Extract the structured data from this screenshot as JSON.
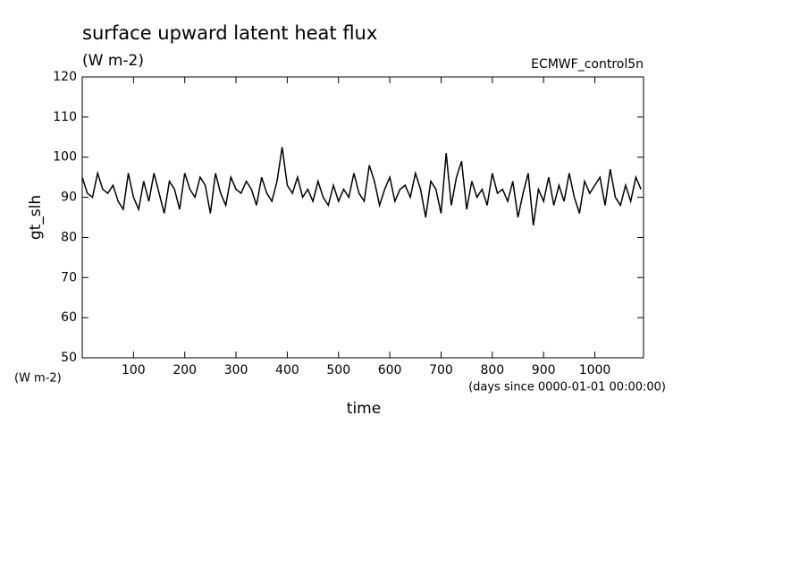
{
  "chart_data": {
    "type": "line",
    "title": "surface upward latent heat flux",
    "subtitle": "(W m-2)",
    "source_label": "ECMWF_control5n",
    "y_label": "gt_slh",
    "y_unit_label": "(W m-2)",
    "x_unit_label": "(days since 0000-01-01 00:00:00)",
    "x_label": "time",
    "xlim": [
      0,
      1095
    ],
    "xticks": [
      100,
      200,
      300,
      400,
      500,
      600,
      700,
      800,
      900,
      1000
    ],
    "ylim": [
      50,
      120
    ],
    "yticks": [
      50,
      60,
      70,
      80,
      90,
      100,
      110,
      120
    ],
    "x": [
      0,
      10,
      20,
      30,
      40,
      50,
      60,
      70,
      80,
      90,
      100,
      110,
      120,
      130,
      140,
      150,
      160,
      170,
      180,
      190,
      200,
      210,
      220,
      230,
      240,
      250,
      260,
      270,
      280,
      290,
      300,
      310,
      320,
      330,
      340,
      350,
      360,
      370,
      380,
      390,
      400,
      410,
      420,
      430,
      440,
      450,
      460,
      470,
      480,
      490,
      500,
      510,
      520,
      530,
      540,
      550,
      560,
      570,
      580,
      590,
      600,
      610,
      620,
      630,
      640,
      650,
      660,
      670,
      680,
      690,
      700,
      710,
      720,
      730,
      740,
      750,
      760,
      770,
      780,
      790,
      800,
      810,
      820,
      830,
      840,
      850,
      860,
      870,
      880,
      890,
      900,
      910,
      920,
      930,
      940,
      950,
      960,
      970,
      980,
      990,
      1000,
      1010,
      1020,
      1030,
      1040,
      1050,
      1060,
      1070,
      1080,
      1090
    ],
    "series": [
      {
        "color": "#000000",
        "values": [
          95,
          91,
          90,
          96,
          92,
          91,
          93,
          89,
          87,
          96,
          90,
          87,
          94,
          89,
          96,
          91,
          86,
          94,
          92,
          87,
          96,
          92,
          90,
          95,
          93,
          86,
          96,
          91,
          88,
          95,
          92,
          91,
          94,
          92,
          88,
          95,
          91,
          89,
          94,
          102.5,
          93,
          91,
          95,
          90,
          92,
          89,
          94,
          90,
          88,
          93,
          89,
          92,
          90,
          96,
          91,
          89,
          98,
          94,
          88,
          92,
          95,
          89,
          92,
          93,
          90,
          96,
          92,
          85,
          94,
          92,
          86,
          101,
          88,
          95,
          99,
          87,
          94,
          90,
          92,
          88,
          96,
          91,
          92,
          89,
          94,
          85,
          91,
          96,
          83,
          92,
          89,
          95,
          88,
          93,
          89,
          96,
          90,
          86,
          94,
          91,
          93,
          95,
          88,
          97,
          90,
          88,
          93,
          89,
          95,
          92
        ]
      }
    ]
  }
}
